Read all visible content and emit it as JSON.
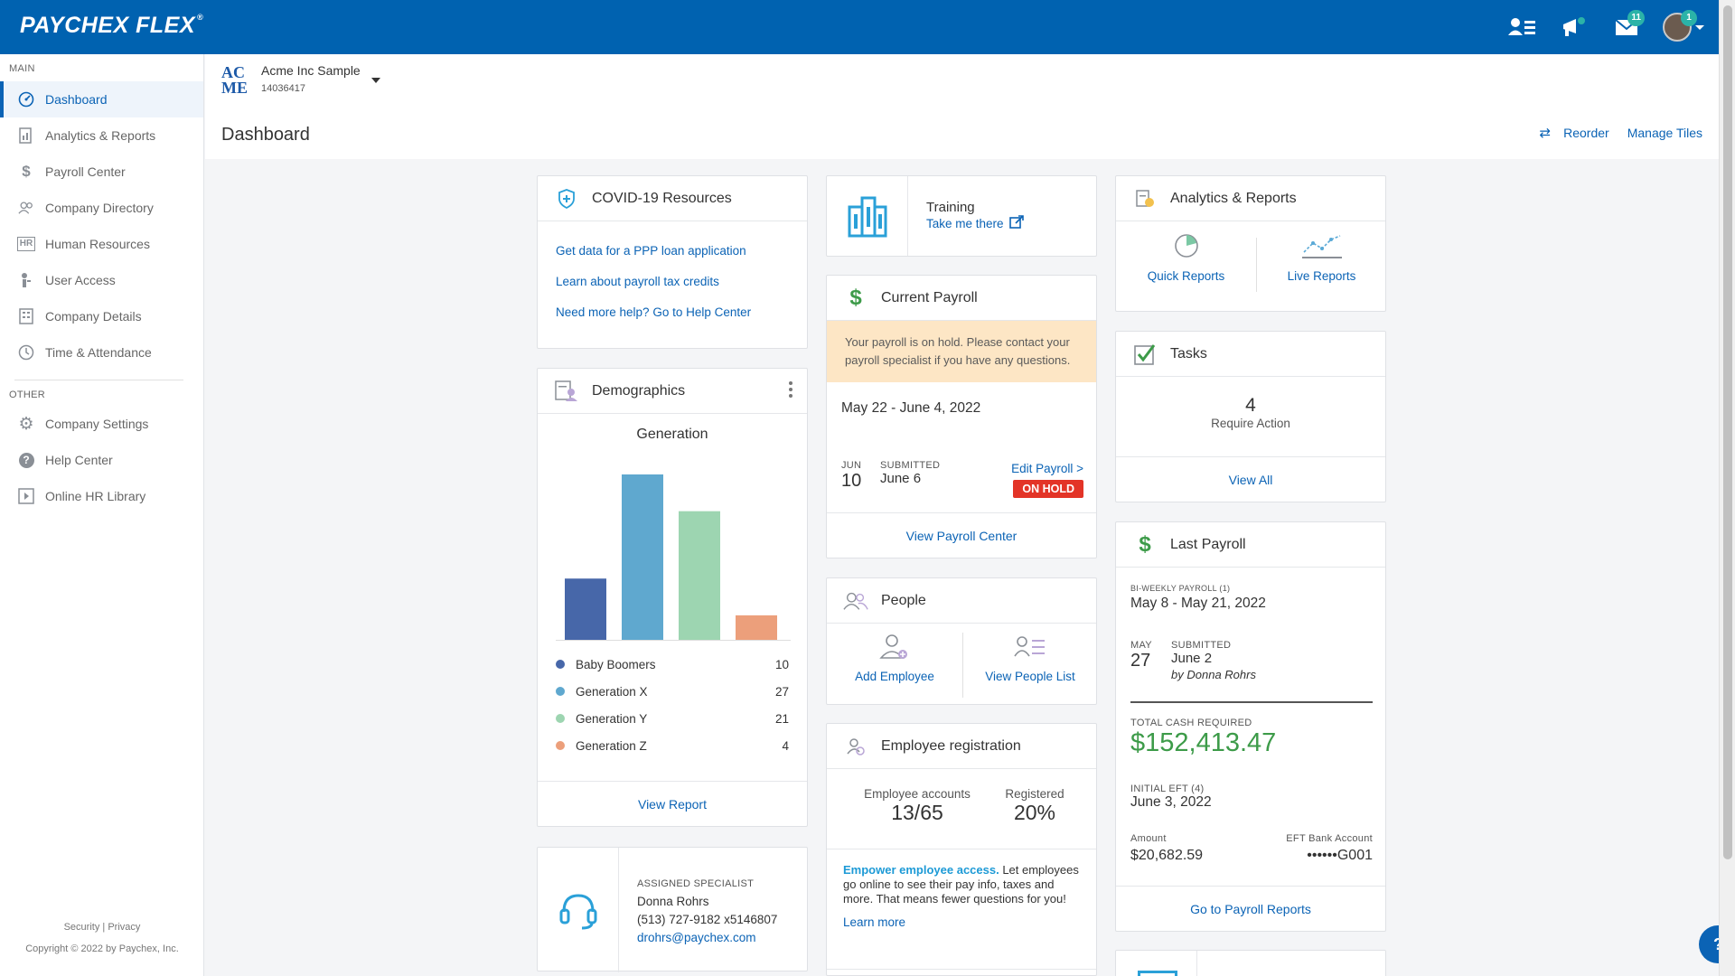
{
  "app": {
    "logo": "PAYCHEX FLEX",
    "logo_mark": "®"
  },
  "topbar": {
    "inbox_badge": "11",
    "avatar_badge": "1"
  },
  "sidebar": {
    "main_label": "MAIN",
    "other_label": "OTHER",
    "main_items": [
      {
        "label": "Dashboard",
        "icon": "dashboard-icon"
      },
      {
        "label": "Analytics & Reports",
        "icon": "reports-icon"
      },
      {
        "label": "Payroll Center",
        "icon": "dollar-icon"
      },
      {
        "label": "Company Directory",
        "icon": "people-icon"
      },
      {
        "label": "Human Resources",
        "icon": "hr-icon"
      },
      {
        "label": "User Access",
        "icon": "user-access-icon"
      },
      {
        "label": "Company Details",
        "icon": "building-icon"
      },
      {
        "label": "Time & Attendance",
        "icon": "clock-icon"
      }
    ],
    "other_items": [
      {
        "label": "Company Settings",
        "icon": "gear-icon"
      },
      {
        "label": "Help Center",
        "icon": "help-icon"
      },
      {
        "label": "Online HR Library",
        "icon": "library-icon"
      }
    ],
    "footer": {
      "security": "Security",
      "sep": " | ",
      "privacy": "Privacy",
      "copyright": "Copyright © 2022 by Paychex, Inc."
    }
  },
  "header": {
    "logo_top": "AC",
    "logo_bottom": "ME",
    "company_name": "Acme Inc Sample",
    "company_id": "14036417",
    "page_title": "Dashboard",
    "reorder": "Reorder",
    "manage_tiles": "Manage Tiles"
  },
  "covid": {
    "title": "COVID-19 Resources",
    "links": [
      "Get data for a PPP loan application",
      "Learn about payroll tax credits",
      "Need more help? Go to Help Center"
    ]
  },
  "demographics": {
    "title": "Demographics",
    "chart_title": "Generation",
    "view_report": "View Report"
  },
  "chart_data": {
    "type": "bar",
    "title": "Generation",
    "categories": [
      "Baby Boomers",
      "Generation X",
      "Generation Y",
      "Generation Z"
    ],
    "values": [
      10,
      27,
      21,
      4
    ],
    "colors": [
      "#4767a9",
      "#5fa8cf",
      "#9dd5b1",
      "#ec9f7b"
    ],
    "ylim": [
      0,
      27
    ],
    "grid": false
  },
  "specialist": {
    "label": "ASSIGNED SPECIALIST",
    "name": "Donna Rohrs",
    "phone": "(513) 727-9182 x5146807",
    "email": "drohrs@paychex.com"
  },
  "training": {
    "title": "Training",
    "link": "Take me there"
  },
  "current_payroll": {
    "title": "Current Payroll",
    "message": "Your payroll is on hold. Please contact your payroll specialist if you have any questions.",
    "period": "May 22 - June 4, 2022",
    "month": "JUN",
    "day": "10",
    "submitted_label": "SUBMITTED",
    "submitted_date": "June 6",
    "edit_link": "Edit Payroll >",
    "status": "ON HOLD",
    "footer": "View Payroll Center"
  },
  "people": {
    "title": "People",
    "add": "Add Employee",
    "list": "View People List"
  },
  "registration": {
    "title": "Employee registration",
    "accounts_label": "Employee accounts",
    "accounts_value": "13/65",
    "registered_label": "Registered",
    "registered_value": "20%",
    "promo_bold": "Empower employee access.",
    "promo_text": " Let employees go online to see their pay info, taxes and more. That means fewer questions for you!",
    "learn_more": "Learn more"
  },
  "analytics": {
    "title": "Analytics & Reports",
    "quick": "Quick Reports",
    "live": "Live Reports"
  },
  "tasks": {
    "title": "Tasks",
    "count": "4",
    "subtitle": "Require Action",
    "view_all": "View All"
  },
  "last_payroll": {
    "title": "Last Payroll",
    "type_label": "BI-WEEKLY PAYROLL (1)",
    "period": "May 8 - May 21, 2022",
    "month": "MAY",
    "day": "27",
    "submitted_label": "SUBMITTED",
    "submitted_date": "June 2",
    "by_label": "by",
    "by_name": "Donna Rohrs",
    "total_label": "TOTAL CASH REQUIRED",
    "total_value": "$152,413.47",
    "eft_label": "INITIAL EFT (4)",
    "eft_date": "June 3, 2022",
    "amount_label": "Amount",
    "amount_value": "$20,682.59",
    "bank_label": "EFT Bank Account",
    "bank_value": "••••••G001",
    "footer": "Go to Payroll Reports"
  },
  "help_fab": "?"
}
